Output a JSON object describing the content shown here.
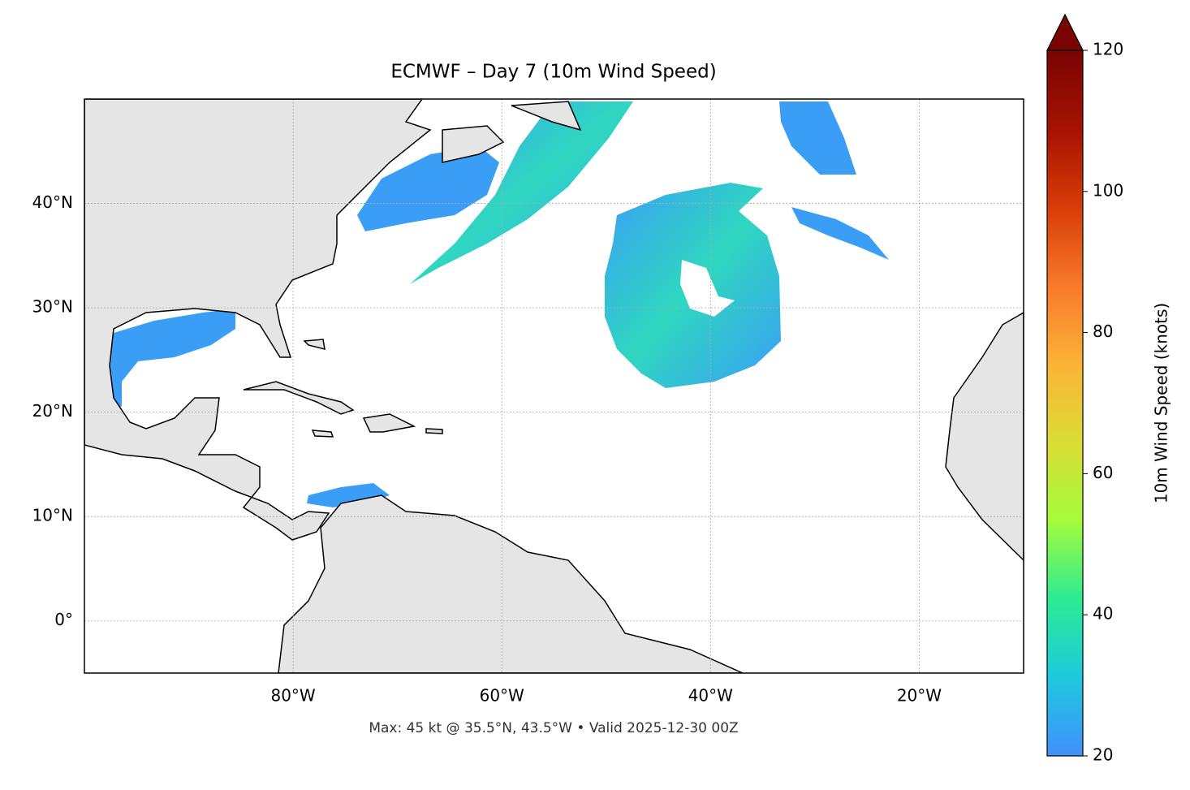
{
  "chart_data": {
    "type": "map",
    "title": "ECMWF – Day 7 (10m Wind Speed)",
    "footnote": "Max: 45 kt @ 35.5°N, 43.5°W • Valid 2025-12-30 00Z",
    "xlim": [
      -100,
      -10
    ],
    "ylim": [
      -5,
      50
    ],
    "xticks": [
      {
        "value": -80,
        "label": "80°W"
      },
      {
        "value": -60,
        "label": "60°W"
      },
      {
        "value": -40,
        "label": "40°W"
      },
      {
        "value": -20,
        "label": "20°W"
      }
    ],
    "yticks": [
      {
        "value": 0,
        "label": "0°"
      },
      {
        "value": 10,
        "label": "10°N"
      },
      {
        "value": 20,
        "label": "20°N"
      },
      {
        "value": 30,
        "label": "30°N"
      },
      {
        "value": 40,
        "label": "40°N"
      }
    ],
    "grid": true,
    "colorbar": {
      "type": "colorbar",
      "label": "10m Wind Speed (knots)",
      "lim": [
        20,
        120
      ],
      "ticks": [
        20,
        40,
        60,
        80,
        100,
        120
      ],
      "colors": [
        "#4190fc",
        "#1fc9dd",
        "#2ceb92",
        "#a4fc3b",
        "#dadd36",
        "#fcb337",
        "#f9792a",
        "#d73c08",
        "#a51201",
        "#7a0403"
      ],
      "extend": "max"
    }
  }
}
